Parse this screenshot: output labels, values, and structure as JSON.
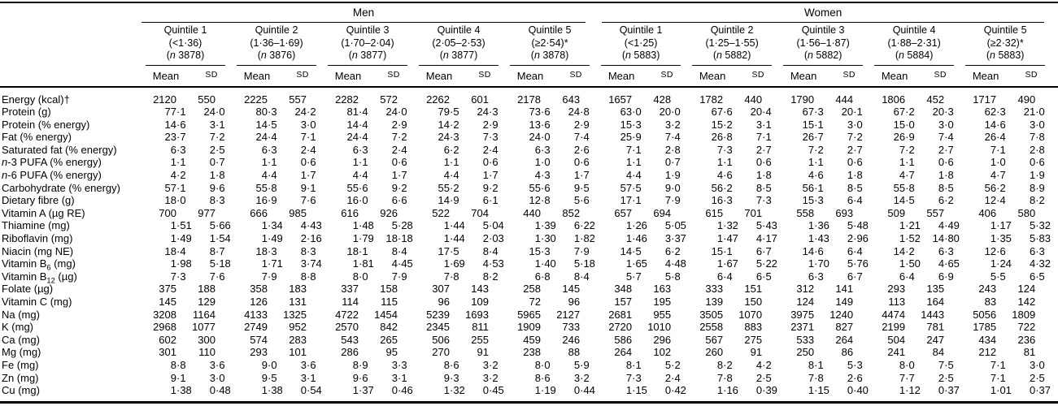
{
  "table": {
    "col_headers": {
      "mean": "Mean",
      "sd": "SD"
    },
    "groups": [
      {
        "label": "Men",
        "quintiles": [
          {
            "title": "Quintile 1",
            "range": "(<1·36)",
            "n_line": [
              {
                "t": "("
              },
              {
                "t": "n",
                "s": "i"
              },
              {
                "t": " 3878)"
              }
            ]
          },
          {
            "title": "Quintile 2",
            "range": "(1·36–1·69)",
            "n_line": [
              {
                "t": "("
              },
              {
                "t": "n",
                "s": "i"
              },
              {
                "t": " 3876)"
              }
            ]
          },
          {
            "title": "Quintile 3",
            "range": "(1·70–2·04)",
            "n_line": [
              {
                "t": "("
              },
              {
                "t": "n",
                "s": "i"
              },
              {
                "t": " 3877)"
              }
            ]
          },
          {
            "title": "Quintile 4",
            "range": "(2·05–2·53)",
            "n_line": [
              {
                "t": "("
              },
              {
                "t": "n",
                "s": "i"
              },
              {
                "t": " 3877)"
              }
            ]
          },
          {
            "title": "Quintile 5",
            "range": "(≥2·54)*",
            "n_line": [
              {
                "t": "("
              },
              {
                "t": "n",
                "s": "i"
              },
              {
                "t": " 3878)"
              }
            ]
          }
        ]
      },
      {
        "label": "Women",
        "quintiles": [
          {
            "title": "Quintile 1",
            "range": "(<1·25)",
            "n_line": [
              {
                "t": "("
              },
              {
                "t": "n",
                "s": "i"
              },
              {
                "t": " 5883)"
              }
            ]
          },
          {
            "title": "Quintile 2",
            "range": "(1·25–1·55)",
            "n_line": [
              {
                "t": "("
              },
              {
                "t": "n",
                "s": "i"
              },
              {
                "t": " 5882)"
              }
            ]
          },
          {
            "title": "Quintile 3",
            "range": "(1·56–1·87)",
            "n_line": [
              {
                "t": "("
              },
              {
                "t": "n",
                "s": "i"
              },
              {
                "t": " 5882)"
              }
            ]
          },
          {
            "title": "Quintile 4",
            "range": "(1·88–2·31)",
            "n_line": [
              {
                "t": "("
              },
              {
                "t": "n",
                "s": "i"
              },
              {
                "t": " 5884)"
              }
            ]
          },
          {
            "title": "Quintile 5",
            "range": "(≥2·32)*",
            "n_line": [
              {
                "t": "("
              },
              {
                "t": "n",
                "s": "i"
              },
              {
                "t": " 5883)"
              }
            ]
          }
        ]
      }
    ],
    "rows": [
      {
        "label": [
          {
            "t": "Energy (kcal)†"
          }
        ],
        "values": [
          "2120",
          "550",
          "2225",
          "557",
          "2282",
          "572",
          "2262",
          "601",
          "2178",
          "643",
          "1657",
          "428",
          "1782",
          "440",
          "1790",
          "444",
          "1806",
          "452",
          "1717",
          "490"
        ]
      },
      {
        "label": [
          {
            "t": "Protein (g)"
          }
        ],
        "values": [
          "77·1",
          "24·0",
          "80·3",
          "24·2",
          "81·4",
          "24·0",
          "79·5",
          "24·3",
          "73·6",
          "24·8",
          "63·0",
          "20·0",
          "67·6",
          "20·4",
          "67·3",
          "20·1",
          "67·2",
          "20·3",
          "62·3",
          "21·0"
        ]
      },
      {
        "label": [
          {
            "t": "Protein (% energy)"
          }
        ],
        "values": [
          "14·6",
          "3·1",
          "14·5",
          "3·0",
          "14·4",
          "2·9",
          "14·2",
          "2·9",
          "13·6",
          "2·9",
          "15·3",
          "3·2",
          "15·2",
          "3·1",
          "15·1",
          "3·0",
          "15·0",
          "3·0",
          "14·6",
          "3·0"
        ]
      },
      {
        "label": [
          {
            "t": "Fat (% energy)"
          }
        ],
        "values": [
          "23·7",
          "7·2",
          "24·4",
          "7·1",
          "24·4",
          "7·2",
          "24·3",
          "7·3",
          "24·0",
          "7·4",
          "25·9",
          "7·4",
          "26·8",
          "7·1",
          "26·7",
          "7·2",
          "26·9",
          "7·4",
          "26·4",
          "7·8"
        ]
      },
      {
        "label": [
          {
            "t": "Saturated fat (% energy)"
          }
        ],
        "values": [
          "6·3",
          "2·5",
          "6·3",
          "2·4",
          "6·3",
          "2·4",
          "6·2",
          "2·4",
          "6·3",
          "2·6",
          "7·1",
          "2·8",
          "7·3",
          "2·7",
          "7·2",
          "2·7",
          "7·2",
          "2·7",
          "7·1",
          "2·8"
        ]
      },
      {
        "label": [
          {
            "t": "n",
            "s": "i"
          },
          {
            "t": "-3 PUFA (% energy)"
          }
        ],
        "values": [
          "1·1",
          "0·7",
          "1·1",
          "0·6",
          "1·1",
          "0·6",
          "1·1",
          "0·6",
          "1·0",
          "0·6",
          "1·1",
          "0·7",
          "1·1",
          "0·6",
          "1·1",
          "0·6",
          "1·1",
          "0·6",
          "1·0",
          "0·6"
        ]
      },
      {
        "label": [
          {
            "t": "n",
            "s": "i"
          },
          {
            "t": "-6 PUFA (% energy)"
          }
        ],
        "values": [
          "4·2",
          "1·8",
          "4·4",
          "1·7",
          "4·4",
          "1·7",
          "4·4",
          "1·7",
          "4·3",
          "1·7",
          "4·4",
          "1·9",
          "4·6",
          "1·8",
          "4·6",
          "1·8",
          "4·7",
          "1·8",
          "4·7",
          "1·9"
        ]
      },
      {
        "label": [
          {
            "t": "Carbohydrate (% energy)"
          }
        ],
        "values": [
          "57·1",
          "9·6",
          "55·8",
          "9·1",
          "55·6",
          "9·2",
          "55·2",
          "9·2",
          "55·6",
          "9·5",
          "57·5",
          "9·0",
          "56·2",
          "8·5",
          "56·1",
          "8·5",
          "55·8",
          "8·5",
          "56·2",
          "8·9"
        ]
      },
      {
        "label": [
          {
            "t": "Dietary fibre (g)"
          }
        ],
        "values": [
          "18·0",
          "8·3",
          "16·9",
          "7·6",
          "16·0",
          "6·6",
          "14·9",
          "6·1",
          "12·8",
          "5·6",
          "17·1",
          "7·9",
          "16·3",
          "7·3",
          "15·3",
          "6·4",
          "14·5",
          "6·2",
          "12·4",
          "8·2"
        ]
      },
      {
        "label": [
          {
            "t": "Vitamin A (µg RE)"
          }
        ],
        "values": [
          "700",
          "977",
          "666",
          "985",
          "616",
          "926",
          "522",
          "704",
          "440",
          "852",
          "657",
          "694",
          "615",
          "701",
          "558",
          "693",
          "509",
          "557",
          "406",
          "580"
        ]
      },
      {
        "label": [
          {
            "t": "Thiamine (mg)"
          }
        ],
        "values": [
          "1·51",
          "5·66",
          "1·34",
          "4·43",
          "1·48",
          "5·28",
          "1·44",
          "5·04",
          "1·39",
          "6·22",
          "1·26",
          "5·05",
          "1·32",
          "5·43",
          "1·36",
          "5·48",
          "1·21",
          "4·49",
          "1·17",
          "5·32"
        ]
      },
      {
        "label": [
          {
            "t": "Riboflavin (mg)"
          }
        ],
        "values": [
          "1·49",
          "1·54",
          "1·49",
          "2·16",
          "1·79",
          "18·18",
          "1·44",
          "2·03",
          "1·30",
          "1·82",
          "1·46",
          "3·37",
          "1·47",
          "4·17",
          "1·43",
          "2·96",
          "1·52",
          "14·80",
          "1·35",
          "5·83"
        ]
      },
      {
        "label": [
          {
            "t": "Niacin (mg NE)"
          }
        ],
        "values": [
          "18·4",
          "8·7",
          "18·3",
          "8·3",
          "18·1",
          "8·4",
          "17·5",
          "8·4",
          "15·3",
          "7·9",
          "14·5",
          "6·2",
          "15·1",
          "6·7",
          "14·6",
          "6·4",
          "14·2",
          "6·3",
          "12·6",
          "6·3"
        ]
      },
      {
        "label": [
          {
            "t": "Vitamin B"
          },
          {
            "t": "6",
            "s": "sub"
          },
          {
            "t": " (mg)"
          }
        ],
        "values": [
          "1·98",
          "5·18",
          "1·71",
          "3·74",
          "1·81",
          "4·45",
          "1·69",
          "4·53",
          "1·40",
          "5·18",
          "1·65",
          "4·48",
          "1·67",
          "5·22",
          "1·70",
          "5·76",
          "1·50",
          "4·65",
          "1·24",
          "4·32"
        ]
      },
      {
        "label": [
          {
            "t": "Vitamin B"
          },
          {
            "t": "12",
            "s": "sub"
          },
          {
            "t": " (µg)"
          }
        ],
        "values": [
          "7·3",
          "7·6",
          "7·9",
          "8·8",
          "8·0",
          "7·9",
          "7·8",
          "8·2",
          "6·8",
          "8·4",
          "5·7",
          "5·8",
          "6·4",
          "6·5",
          "6·3",
          "6·7",
          "6·4",
          "6·9",
          "5·5",
          "6·5"
        ]
      },
      {
        "label": [
          {
            "t": "Folate (µg)"
          }
        ],
        "values": [
          "375",
          "188",
          "358",
          "183",
          "337",
          "158",
          "307",
          "143",
          "258",
          "145",
          "348",
          "163",
          "333",
          "151",
          "312",
          "141",
          "293",
          "135",
          "243",
          "124"
        ]
      },
      {
        "label": [
          {
            "t": "Vitamin C (mg)"
          }
        ],
        "values": [
          "145",
          "129",
          "126",
          "131",
          "114",
          "115",
          "96",
          "109",
          "72",
          "96",
          "157",
          "195",
          "139",
          "150",
          "124",
          "149",
          "113",
          "164",
          "83",
          "142"
        ]
      },
      {
        "label": [
          {
            "t": "Na (mg)"
          }
        ],
        "values": [
          "3208",
          "1164",
          "4133",
          "1325",
          "4722",
          "1454",
          "5239",
          "1693",
          "5965",
          "2127",
          "2681",
          "955",
          "3505",
          "1070",
          "3975",
          "1240",
          "4474",
          "1443",
          "5056",
          "1809"
        ]
      },
      {
        "label": [
          {
            "t": "K (mg)"
          }
        ],
        "values": [
          "2968",
          "1077",
          "2749",
          "952",
          "2570",
          "842",
          "2345",
          "811",
          "1909",
          "733",
          "2720",
          "1010",
          "2558",
          "883",
          "2371",
          "827",
          "2199",
          "781",
          "1785",
          "722"
        ]
      },
      {
        "label": [
          {
            "t": "Ca (mg)"
          }
        ],
        "values": [
          "602",
          "300",
          "574",
          "283",
          "543",
          "265",
          "506",
          "255",
          "459",
          "246",
          "586",
          "296",
          "567",
          "275",
          "533",
          "264",
          "504",
          "247",
          "434",
          "236"
        ]
      },
      {
        "label": [
          {
            "t": "Mg (mg)"
          }
        ],
        "values": [
          "301",
          "110",
          "293",
          "101",
          "286",
          "95",
          "270",
          "91",
          "238",
          "88",
          "264",
          "102",
          "260",
          "91",
          "250",
          "86",
          "241",
          "84",
          "212",
          "81"
        ]
      },
      {
        "label": [
          {
            "t": "Fe (mg)"
          }
        ],
        "values": [
          "8·8",
          "3·6",
          "9·0",
          "3·6",
          "8·9",
          "3·3",
          "8·6",
          "3·2",
          "8·0",
          "5·9",
          "8·1",
          "5·2",
          "8·2",
          "4·2",
          "8·1",
          "5·3",
          "8·0",
          "7·5",
          "7·1",
          "3·0"
        ]
      },
      {
        "label": [
          {
            "t": "Zn (mg)"
          }
        ],
        "values": [
          "9·1",
          "3·0",
          "9·5",
          "3·1",
          "9·6",
          "3·1",
          "9·3",
          "3·2",
          "8·6",
          "3·2",
          "7·3",
          "2·4",
          "7·8",
          "2·5",
          "7·8",
          "2·6",
          "7·7",
          "2·5",
          "7·1",
          "2·5"
        ]
      },
      {
        "label": [
          {
            "t": "Cu (mg)"
          }
        ],
        "values": [
          "1·38",
          "0·48",
          "1·38",
          "0·54",
          "1·37",
          "0·46",
          "1·32",
          "0·45",
          "1·19",
          "0·44",
          "1·15",
          "0·42",
          "1·16",
          "0·39",
          "1·15",
          "0·40",
          "1·12",
          "0·37",
          "1·01",
          "0·37"
        ]
      }
    ]
  }
}
